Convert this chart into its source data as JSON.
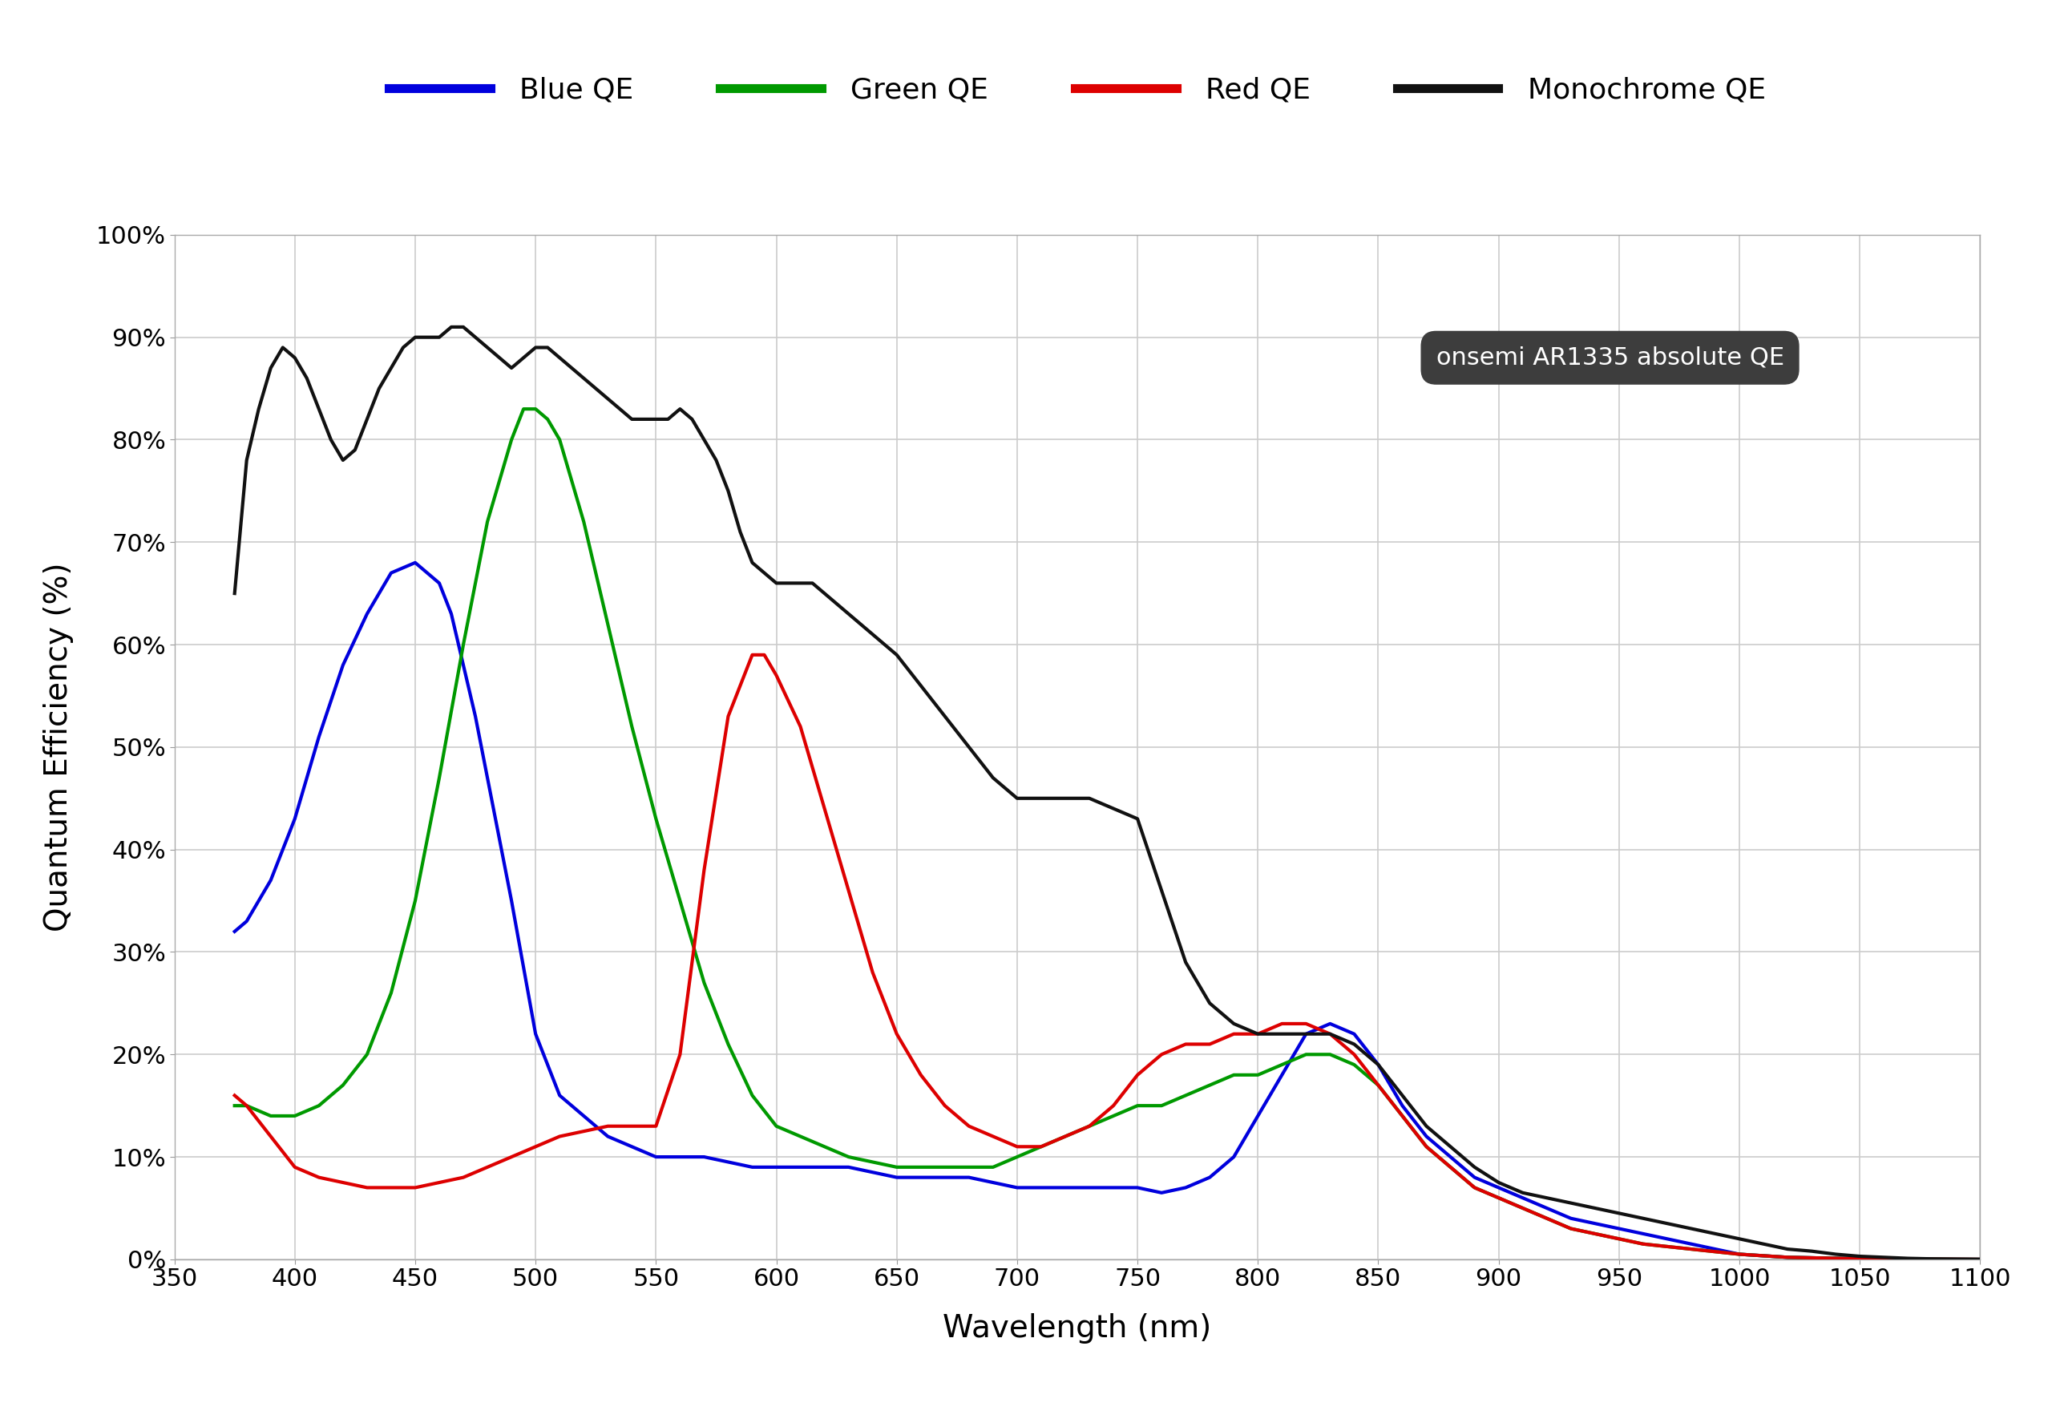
{
  "xlabel": "Wavelength (nm)",
  "ylabel": "Quantum Efficiency (%)",
  "annotation": "onsemi AR1335 absolute QE",
  "xlim": [
    350,
    1100
  ],
  "ylim": [
    0,
    100
  ],
  "xticks": [
    350,
    400,
    450,
    500,
    550,
    600,
    650,
    700,
    750,
    800,
    850,
    900,
    950,
    1000,
    1050,
    1100
  ],
  "yticks": [
    0,
    10,
    20,
    30,
    40,
    50,
    60,
    70,
    80,
    90,
    100
  ],
  "ytick_labels": [
    "0%",
    "10%",
    "20%",
    "30%",
    "40%",
    "50%",
    "60%",
    "70%",
    "80%",
    "90%",
    "100%"
  ],
  "background_color": "#ffffff",
  "grid_color": "#cccccc",
  "legend_entries": [
    "Blue QE",
    "Green QE",
    "Red QE",
    "Monochrome QE"
  ],
  "legend_colors": [
    "#0000dd",
    "#009900",
    "#dd0000",
    "#111111"
  ],
  "blue_x": [
    375,
    380,
    385,
    390,
    395,
    400,
    410,
    420,
    430,
    440,
    450,
    460,
    465,
    470,
    475,
    480,
    490,
    500,
    510,
    520,
    530,
    540,
    550,
    560,
    570,
    580,
    590,
    600,
    610,
    620,
    630,
    640,
    650,
    660,
    670,
    680,
    690,
    700,
    710,
    720,
    730,
    740,
    750,
    760,
    770,
    780,
    790,
    800,
    810,
    820,
    830,
    840,
    850,
    860,
    870,
    880,
    890,
    900,
    910,
    920,
    930,
    940,
    950,
    960,
    970,
    980,
    990,
    1000,
    1020,
    1040,
    1060,
    1080,
    1100
  ],
  "blue_y": [
    32,
    33,
    35,
    37,
    40,
    43,
    51,
    58,
    63,
    67,
    68,
    66,
    63,
    58,
    53,
    47,
    35,
    22,
    16,
    14,
    12,
    11,
    10,
    10,
    10,
    9.5,
    9,
    9,
    9,
    9,
    9,
    8.5,
    8,
    8,
    8,
    8,
    7.5,
    7,
    7,
    7,
    7,
    7,
    7,
    6.5,
    7,
    8,
    10,
    14,
    18,
    22,
    23,
    22,
    19,
    15,
    12,
    10,
    8,
    7,
    6,
    5,
    4,
    3.5,
    3,
    2.5,
    2,
    1.5,
    1,
    0.5,
    0.2,
    0.1,
    0.05,
    0.02,
    0
  ],
  "green_x": [
    375,
    380,
    390,
    400,
    410,
    420,
    430,
    440,
    450,
    460,
    470,
    480,
    490,
    495,
    500,
    505,
    510,
    515,
    520,
    530,
    540,
    550,
    560,
    570,
    580,
    590,
    600,
    610,
    620,
    630,
    640,
    650,
    660,
    670,
    680,
    690,
    700,
    710,
    720,
    730,
    740,
    750,
    760,
    770,
    780,
    790,
    800,
    810,
    820,
    830,
    840,
    850,
    860,
    870,
    880,
    890,
    900,
    910,
    920,
    930,
    940,
    950,
    960,
    980,
    1000,
    1020,
    1040,
    1060,
    1080,
    1100
  ],
  "green_y": [
    15,
    15,
    14,
    14,
    15,
    17,
    20,
    26,
    35,
    47,
    60,
    72,
    80,
    83,
    83,
    82,
    80,
    76,
    72,
    62,
    52,
    43,
    35,
    27,
    21,
    16,
    13,
    12,
    11,
    10,
    9.5,
    9,
    9,
    9,
    9,
    9,
    10,
    11,
    12,
    13,
    14,
    15,
    15,
    16,
    17,
    18,
    18,
    19,
    20,
    20,
    19,
    17,
    14,
    11,
    9,
    7,
    6,
    5,
    4,
    3,
    2.5,
    2,
    1.5,
    1,
    0.5,
    0.2,
    0.1,
    0.05,
    0.02,
    0
  ],
  "red_x": [
    375,
    380,
    390,
    400,
    410,
    420,
    430,
    440,
    450,
    460,
    470,
    480,
    490,
    500,
    510,
    520,
    530,
    540,
    550,
    560,
    570,
    580,
    590,
    595,
    600,
    610,
    620,
    630,
    640,
    650,
    660,
    670,
    680,
    690,
    700,
    710,
    720,
    730,
    740,
    750,
    760,
    770,
    780,
    790,
    800,
    810,
    820,
    830,
    840,
    850,
    860,
    870,
    880,
    890,
    900,
    910,
    920,
    930,
    940,
    950,
    960,
    980,
    1000,
    1020,
    1040,
    1060,
    1080,
    1100
  ],
  "red_y": [
    16,
    15,
    12,
    9,
    8,
    7.5,
    7,
    7,
    7,
    7.5,
    8,
    9,
    10,
    11,
    12,
    12.5,
    13,
    13,
    13,
    20,
    38,
    53,
    59,
    59,
    57,
    52,
    44,
    36,
    28,
    22,
    18,
    15,
    13,
    12,
    11,
    11,
    12,
    13,
    15,
    18,
    20,
    21,
    21,
    22,
    22,
    23,
    23,
    22,
    20,
    17,
    14,
    11,
    9,
    7,
    6,
    5,
    4,
    3,
    2.5,
    2,
    1.5,
    1,
    0.5,
    0.2,
    0.1,
    0.05,
    0.02,
    0
  ],
  "mono_x": [
    375,
    380,
    385,
    390,
    395,
    400,
    405,
    410,
    415,
    420,
    425,
    430,
    435,
    440,
    445,
    450,
    455,
    460,
    465,
    470,
    475,
    480,
    485,
    490,
    495,
    500,
    505,
    510,
    515,
    520,
    525,
    530,
    535,
    540,
    545,
    550,
    555,
    560,
    565,
    570,
    575,
    580,
    585,
    590,
    595,
    600,
    605,
    610,
    615,
    620,
    625,
    630,
    635,
    640,
    645,
    650,
    660,
    670,
    680,
    690,
    700,
    710,
    720,
    730,
    740,
    750,
    760,
    770,
    780,
    790,
    800,
    810,
    820,
    830,
    840,
    850,
    860,
    870,
    880,
    890,
    900,
    910,
    920,
    930,
    940,
    950,
    960,
    970,
    980,
    990,
    1000,
    1010,
    1020,
    1030,
    1040,
    1050,
    1060,
    1070,
    1080,
    1090,
    1100
  ],
  "mono_y": [
    65,
    78,
    83,
    87,
    89,
    88,
    86,
    83,
    80,
    78,
    79,
    82,
    85,
    87,
    89,
    90,
    90,
    90,
    91,
    91,
    90,
    89,
    88,
    87,
    88,
    89,
    89,
    88,
    87,
    86,
    85,
    84,
    83,
    82,
    82,
    82,
    82,
    83,
    82,
    80,
    78,
    75,
    71,
    68,
    67,
    66,
    66,
    66,
    66,
    65,
    64,
    63,
    62,
    61,
    60,
    59,
    56,
    53,
    50,
    47,
    45,
    45,
    45,
    45,
    44,
    43,
    36,
    29,
    25,
    23,
    22,
    22,
    22,
    22,
    21,
    19,
    16,
    13,
    11,
    9,
    7.5,
    6.5,
    6,
    5.5,
    5,
    4.5,
    4,
    3.5,
    3,
    2.5,
    2,
    1.5,
    1,
    0.8,
    0.5,
    0.3,
    0.2,
    0.1,
    0.05,
    0.02,
    0
  ]
}
